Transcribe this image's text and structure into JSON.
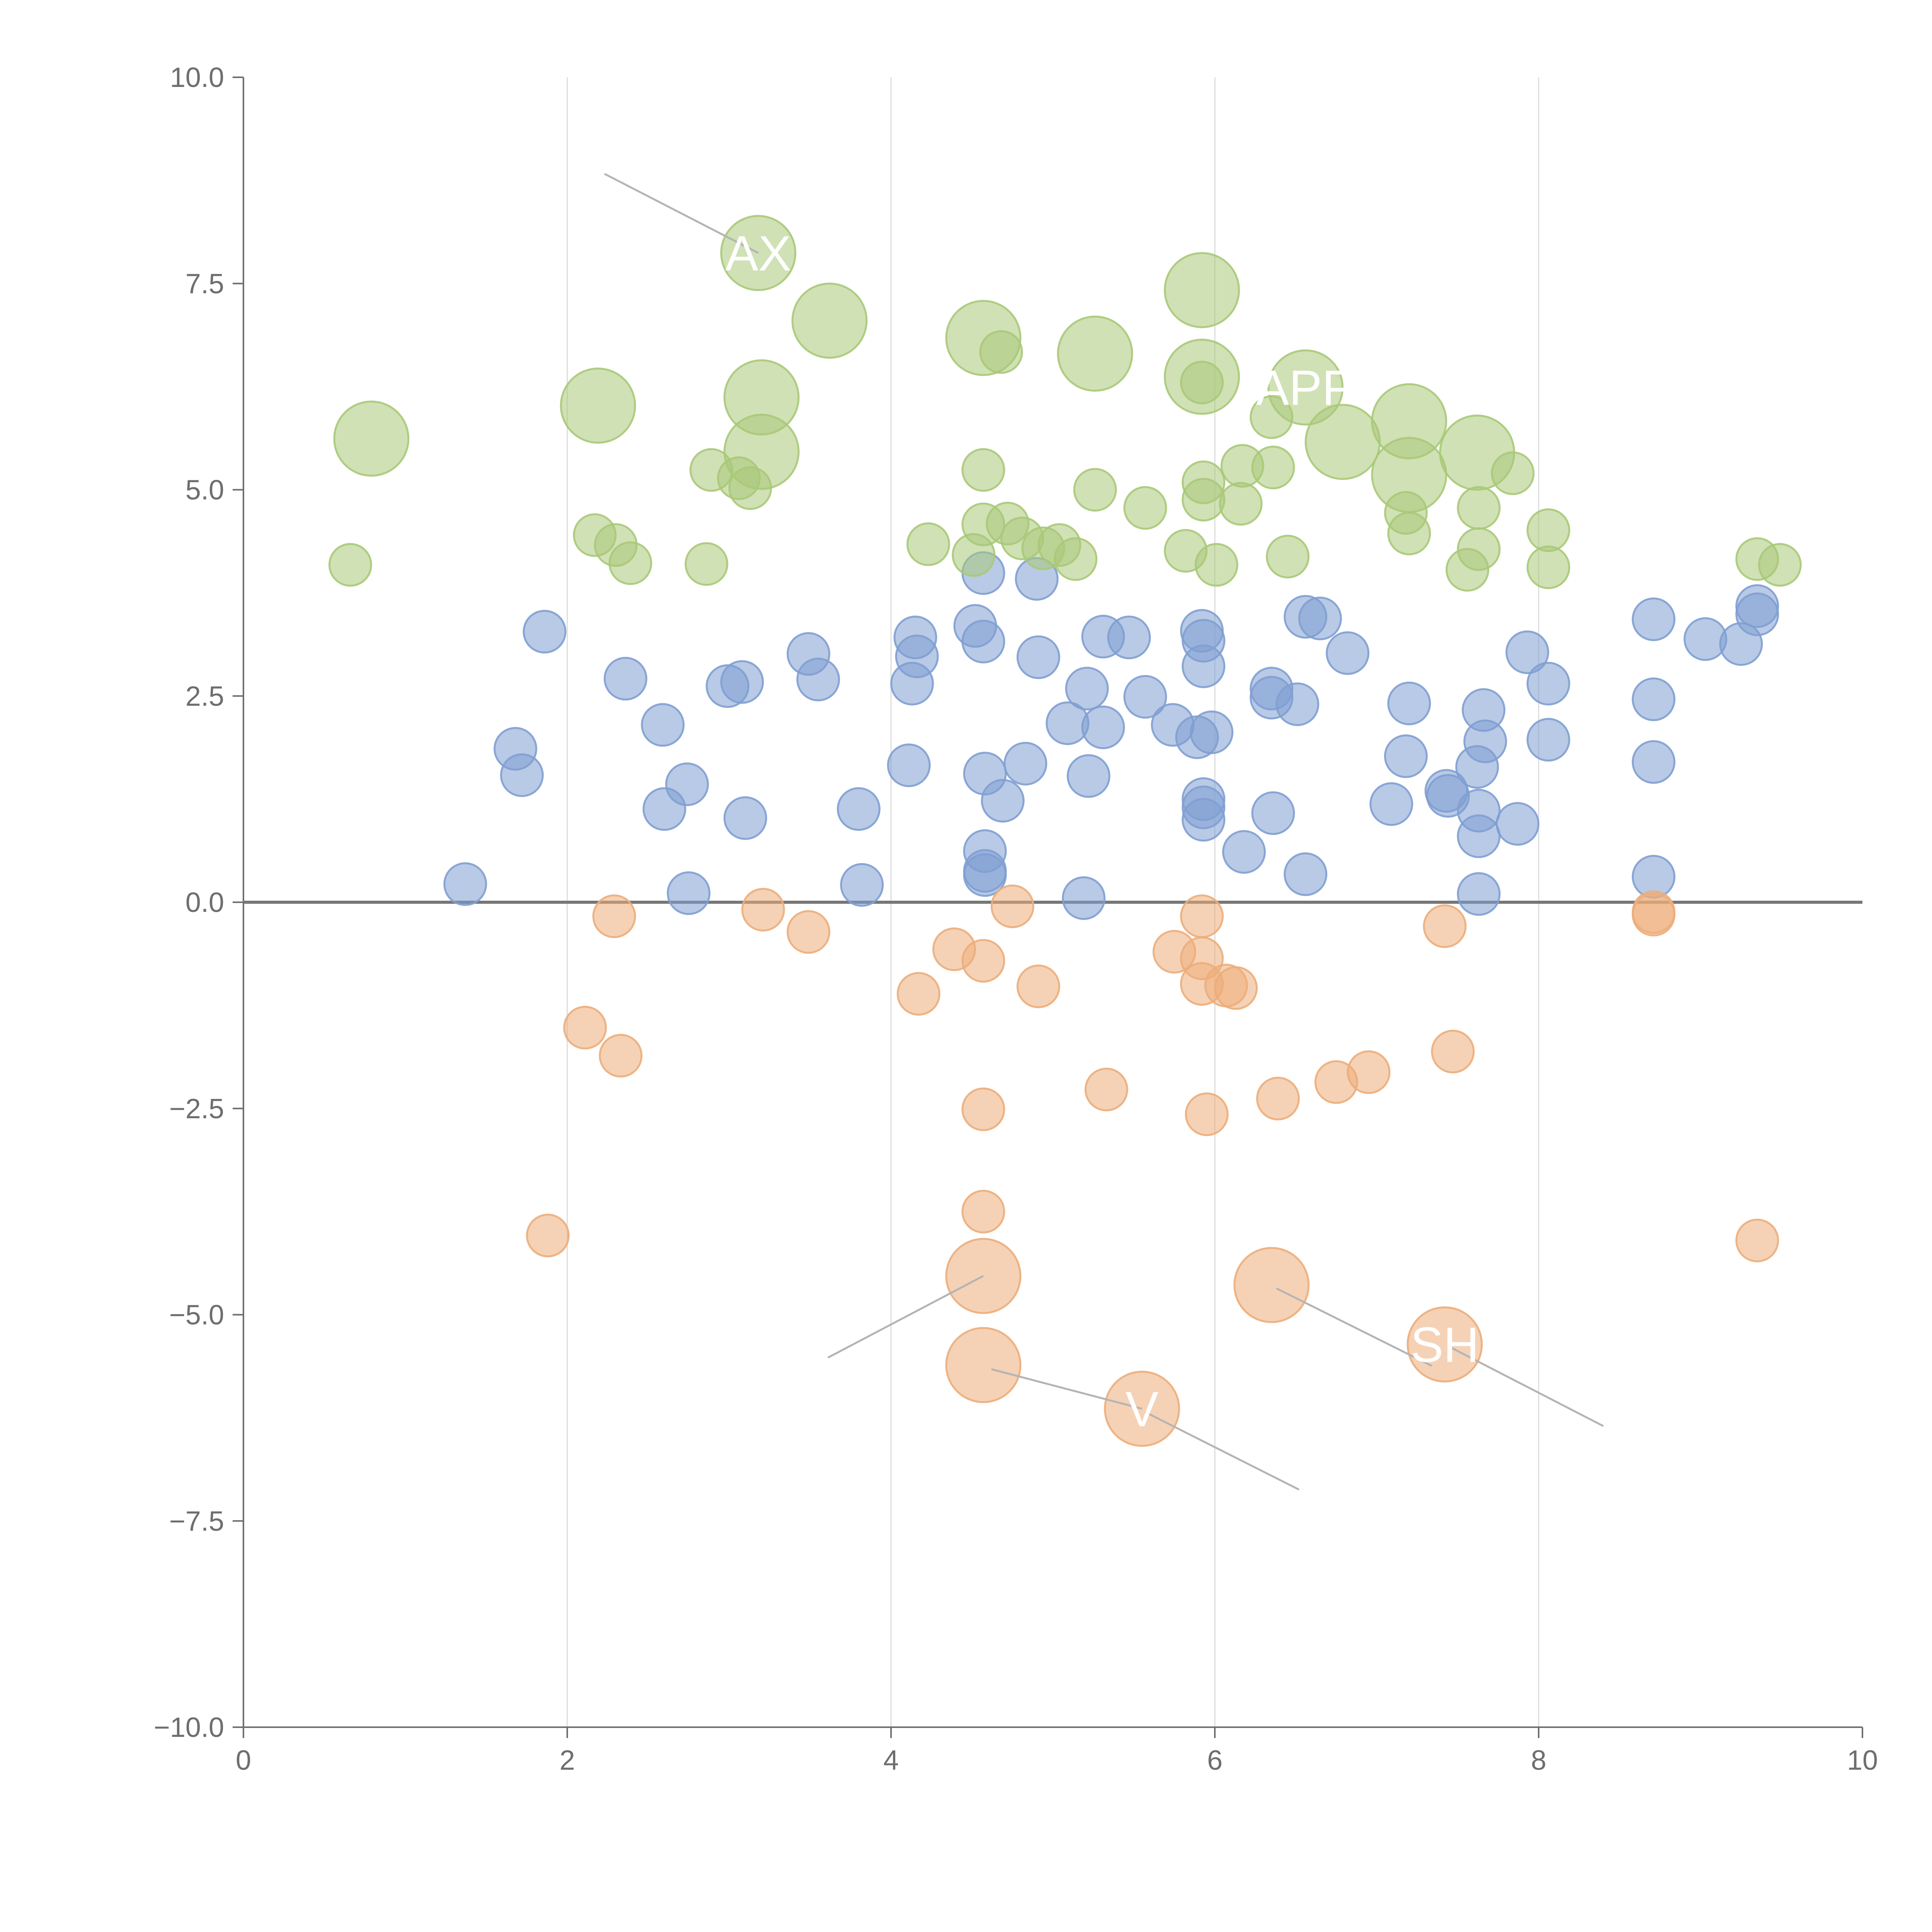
{
  "colors": {
    "blue": "#7f9fd1",
    "green": "#a9c978",
    "orange": "#ecad7a",
    "axis": "#6e6e6e",
    "grid": "#dcdcdc",
    "zero_line": "#777777",
    "leader": "#b4b4b4",
    "label": "#ffffff"
  },
  "chart_data": {
    "type": "scatter",
    "subtype": "bubble",
    "title": "",
    "xlabel": "",
    "ylabel": "",
    "xlim": [
      0,
      10
    ],
    "ylim": [
      -10,
      10
    ],
    "x_ticks": [
      "0",
      "2",
      "4",
      "6",
      "8",
      "10"
    ],
    "y_ticks": [
      "10.0",
      "7.5",
      "5.0",
      "2.5",
      "0.0",
      "−2.5",
      "−5.0",
      "−7.5",
      "−10.0"
    ],
    "x_grid": true,
    "y_grid": false,
    "reference_line_y": 0,
    "series": [
      {
        "name": "blue",
        "points": [
          [
            1.37,
            0.22,
            1
          ],
          [
            1.68,
            1.86,
            1
          ],
          [
            1.72,
            1.54,
            1
          ],
          [
            1.86,
            3.28,
            1
          ],
          [
            2.36,
            2.71,
            1
          ],
          [
            2.59,
            2.15,
            1
          ],
          [
            2.6,
            1.13,
            1
          ],
          [
            2.74,
            1.43,
            1
          ],
          [
            2.75,
            0.11,
            1
          ],
          [
            2.99,
            2.62,
            1
          ],
          [
            3.08,
            2.67,
            1
          ],
          [
            3.1,
            1.02,
            1
          ],
          [
            3.49,
            3.01,
            1
          ],
          [
            3.55,
            2.7,
            1
          ],
          [
            3.8,
            1.13,
            1
          ],
          [
            3.82,
            0.21,
            1
          ],
          [
            4.11,
            1.66,
            1
          ],
          [
            4.13,
            2.65,
            1
          ],
          [
            4.15,
            3.21,
            1
          ],
          [
            4.16,
            2.98,
            1
          ],
          [
            4.52,
            3.35,
            1
          ],
          [
            4.57,
            3.99,
            1
          ],
          [
            4.57,
            3.16,
            1
          ],
          [
            4.58,
            1.56,
            1
          ],
          [
            4.58,
            0.62,
            1
          ],
          [
            4.58,
            0.38,
            1
          ],
          [
            4.58,
            0.33,
            1
          ],
          [
            4.69,
            1.23,
            1
          ],
          [
            4.83,
            1.68,
            1
          ],
          [
            4.9,
            3.92,
            1
          ],
          [
            4.91,
            2.97,
            1
          ],
          [
            5.09,
            2.17,
            1
          ],
          [
            5.19,
            0.05,
            1
          ],
          [
            5.21,
            2.59,
            1
          ],
          [
            5.22,
            1.53,
            1
          ],
          [
            5.31,
            3.22,
            1
          ],
          [
            5.31,
            2.12,
            1
          ],
          [
            5.47,
            3.21,
            1
          ],
          [
            5.57,
            2.49,
            1
          ],
          [
            5.74,
            2.15,
            1
          ],
          [
            5.89,
            2.0,
            1
          ],
          [
            5.92,
            3.29,
            1
          ],
          [
            5.93,
            3.17,
            1
          ],
          [
            5.93,
            2.86,
            1
          ],
          [
            5.93,
            1.25,
            1
          ],
          [
            5.93,
            1.15,
            1
          ],
          [
            5.93,
            1.0,
            1
          ],
          [
            5.98,
            2.06,
            1
          ],
          [
            6.18,
            0.61,
            1
          ],
          [
            6.35,
            2.59,
            1
          ],
          [
            6.35,
            2.48,
            1
          ],
          [
            6.36,
            1.08,
            1
          ],
          [
            6.51,
            2.4,
            1
          ],
          [
            6.56,
            0.34,
            1
          ],
          [
            6.56,
            3.46,
            1
          ],
          [
            6.65,
            3.44,
            1
          ],
          [
            6.82,
            3.02,
            1
          ],
          [
            7.09,
            1.19,
            1
          ],
          [
            7.18,
            1.77,
            1
          ],
          [
            7.2,
            2.41,
            1
          ],
          [
            7.43,
            1.35,
            1
          ],
          [
            7.44,
            1.29,
            1
          ],
          [
            7.62,
            1.64,
            1
          ],
          [
            7.63,
            1.11,
            1
          ],
          [
            7.63,
            0.8,
            1
          ],
          [
            7.63,
            0.1,
            1
          ],
          [
            7.66,
            2.33,
            1
          ],
          [
            7.67,
            1.95,
            1
          ],
          [
            7.87,
            0.95,
            1
          ],
          [
            7.93,
            3.03,
            1
          ],
          [
            8.06,
            2.65,
            1
          ],
          [
            8.06,
            1.97,
            1
          ],
          [
            8.71,
            3.43,
            1
          ],
          [
            8.71,
            2.46,
            1
          ],
          [
            8.71,
            1.7,
            1
          ],
          [
            8.71,
            0.31,
            1
          ],
          [
            9.03,
            3.19,
            1
          ],
          [
            9.25,
            3.13,
            1
          ],
          [
            9.35,
            3.59,
            1
          ],
          [
            9.35,
            3.49,
            1
          ]
        ]
      },
      {
        "name": "green",
        "points": [
          [
            0.66,
            4.09,
            1
          ],
          [
            0.79,
            5.62,
            2.5
          ],
          [
            2.19,
            6.02,
            2.5
          ],
          [
            2.17,
            4.45,
            1
          ],
          [
            2.3,
            4.33,
            1
          ],
          [
            2.39,
            4.11,
            1
          ],
          [
            2.86,
            4.1,
            1
          ],
          [
            2.89,
            5.24,
            1
          ],
          [
            3.06,
            5.14,
            1
          ],
          [
            3.13,
            5.02,
            1
          ],
          [
            3.18,
            7.87,
            2.5
          ],
          [
            3.2,
            6.12,
            2.5
          ],
          [
            3.2,
            5.46,
            2.5
          ],
          [
            3.62,
            7.05,
            2.5
          ],
          [
            4.23,
            4.34,
            1
          ],
          [
            4.51,
            4.21,
            1
          ],
          [
            4.57,
            6.84,
            2.5
          ],
          [
            4.57,
            5.24,
            1
          ],
          [
            4.57,
            4.58,
            1
          ],
          [
            4.68,
            6.67,
            1
          ],
          [
            4.72,
            4.59,
            1
          ],
          [
            4.81,
            4.41,
            1
          ],
          [
            4.94,
            4.29,
            1
          ],
          [
            5.04,
            4.33,
            1
          ],
          [
            5.14,
            4.16,
            1
          ],
          [
            5.26,
            6.65,
            2.5
          ],
          [
            5.26,
            5.0,
            1
          ],
          [
            5.57,
            4.78,
            1
          ],
          [
            5.82,
            4.26,
            1
          ],
          [
            5.92,
            7.42,
            2.5
          ],
          [
            5.92,
            6.37,
            2.5
          ],
          [
            5.92,
            6.3,
            1
          ],
          [
            5.93,
            5.09,
            1
          ],
          [
            5.93,
            4.88,
            1
          ],
          [
            6.01,
            4.09,
            1
          ],
          [
            6.17,
            5.29,
            1
          ],
          [
            6.16,
            4.83,
            1
          ],
          [
            6.35,
            5.88,
            1
          ],
          [
            6.36,
            5.27,
            1
          ],
          [
            6.45,
            4.19,
            1
          ],
          [
            6.56,
            6.24,
            2.5
          ],
          [
            6.79,
            5.58,
            2.5
          ],
          [
            7.18,
            4.72,
            1
          ],
          [
            7.2,
            4.47,
            1
          ],
          [
            7.2,
            5.83,
            2.5
          ],
          [
            7.2,
            5.18,
            2.5
          ],
          [
            7.56,
            4.03,
            1
          ],
          [
            7.62,
            5.45,
            2.5
          ],
          [
            7.63,
            4.78,
            1
          ],
          [
            7.63,
            4.28,
            1
          ],
          [
            7.84,
            5.2,
            1
          ],
          [
            8.06,
            4.51,
            1
          ],
          [
            8.06,
            4.06,
            1
          ],
          [
            9.35,
            4.16,
            1
          ],
          [
            9.49,
            4.09,
            1
          ]
        ]
      },
      {
        "name": "orange",
        "points": [
          [
            1.88,
            -4.04,
            1
          ],
          [
            2.11,
            -1.52,
            1
          ],
          [
            2.29,
            -0.17,
            1
          ],
          [
            2.33,
            -1.86,
            1
          ],
          [
            3.21,
            -0.09,
            1
          ],
          [
            3.49,
            -0.36,
            1
          ],
          [
            4.17,
            -1.11,
            1
          ],
          [
            4.39,
            -0.57,
            1
          ],
          [
            4.57,
            -0.71,
            1
          ],
          [
            4.57,
            -2.51,
            1
          ],
          [
            4.57,
            -3.75,
            1
          ],
          [
            4.57,
            -4.53,
            2.5
          ],
          [
            4.57,
            -5.61,
            2.5
          ],
          [
            4.75,
            -0.05,
            1
          ],
          [
            4.91,
            -1.02,
            1
          ],
          [
            5.33,
            -2.27,
            1
          ],
          [
            5.55,
            -6.14,
            2.5
          ],
          [
            5.75,
            -0.6,
            1
          ],
          [
            5.92,
            -0.17,
            1
          ],
          [
            5.92,
            -0.68,
            1
          ],
          [
            5.92,
            -0.99,
            1
          ],
          [
            5.95,
            -2.57,
            1
          ],
          [
            6.07,
            -1.01,
            1
          ],
          [
            6.13,
            -1.04,
            1
          ],
          [
            6.35,
            -4.64,
            2.5
          ],
          [
            6.39,
            -2.38,
            1
          ],
          [
            6.75,
            -2.18,
            1
          ],
          [
            6.95,
            -2.06,
            1
          ],
          [
            7.42,
            -0.29,
            1
          ],
          [
            7.42,
            -5.36,
            2.5
          ],
          [
            7.47,
            -1.81,
            1
          ],
          [
            8.71,
            -0.12,
            1
          ],
          [
            8.71,
            -0.15,
            1
          ],
          [
            9.35,
            -4.1,
            1
          ]
        ]
      }
    ],
    "annotations": [
      {
        "text": "AX",
        "series": "green",
        "x": 3.18,
        "y": 7.87
      },
      {
        "text": "APP",
        "series": "green",
        "x": 6.56,
        "y": 6.24
      },
      {
        "text": "SH",
        "series": "orange",
        "x": 7.42,
        "y": -5.36
      },
      {
        "text": "V",
        "series": "orange",
        "x": 5.55,
        "y": -6.14
      }
    ],
    "leader_lines": [
      {
        "series": "green",
        "from": [
          2.23,
          8.83
        ],
        "to": [
          3.18,
          7.87
        ]
      },
      {
        "series": "orange",
        "from": [
          3.61,
          -5.52
        ],
        "to": [
          4.57,
          -4.53
        ]
      },
      {
        "series": "orange",
        "from": [
          4.62,
          -5.66
        ],
        "to": [
          5.55,
          -6.14
        ]
      },
      {
        "series": "orange",
        "from": [
          5.57,
          -6.18
        ],
        "to": [
          6.52,
          -7.12
        ]
      },
      {
        "series": "orange",
        "from": [
          6.38,
          -4.68
        ],
        "to": [
          7.34,
          -5.62
        ]
      },
      {
        "series": "orange",
        "from": [
          7.46,
          -5.4
        ],
        "to": [
          8.4,
          -6.35
        ]
      }
    ]
  }
}
